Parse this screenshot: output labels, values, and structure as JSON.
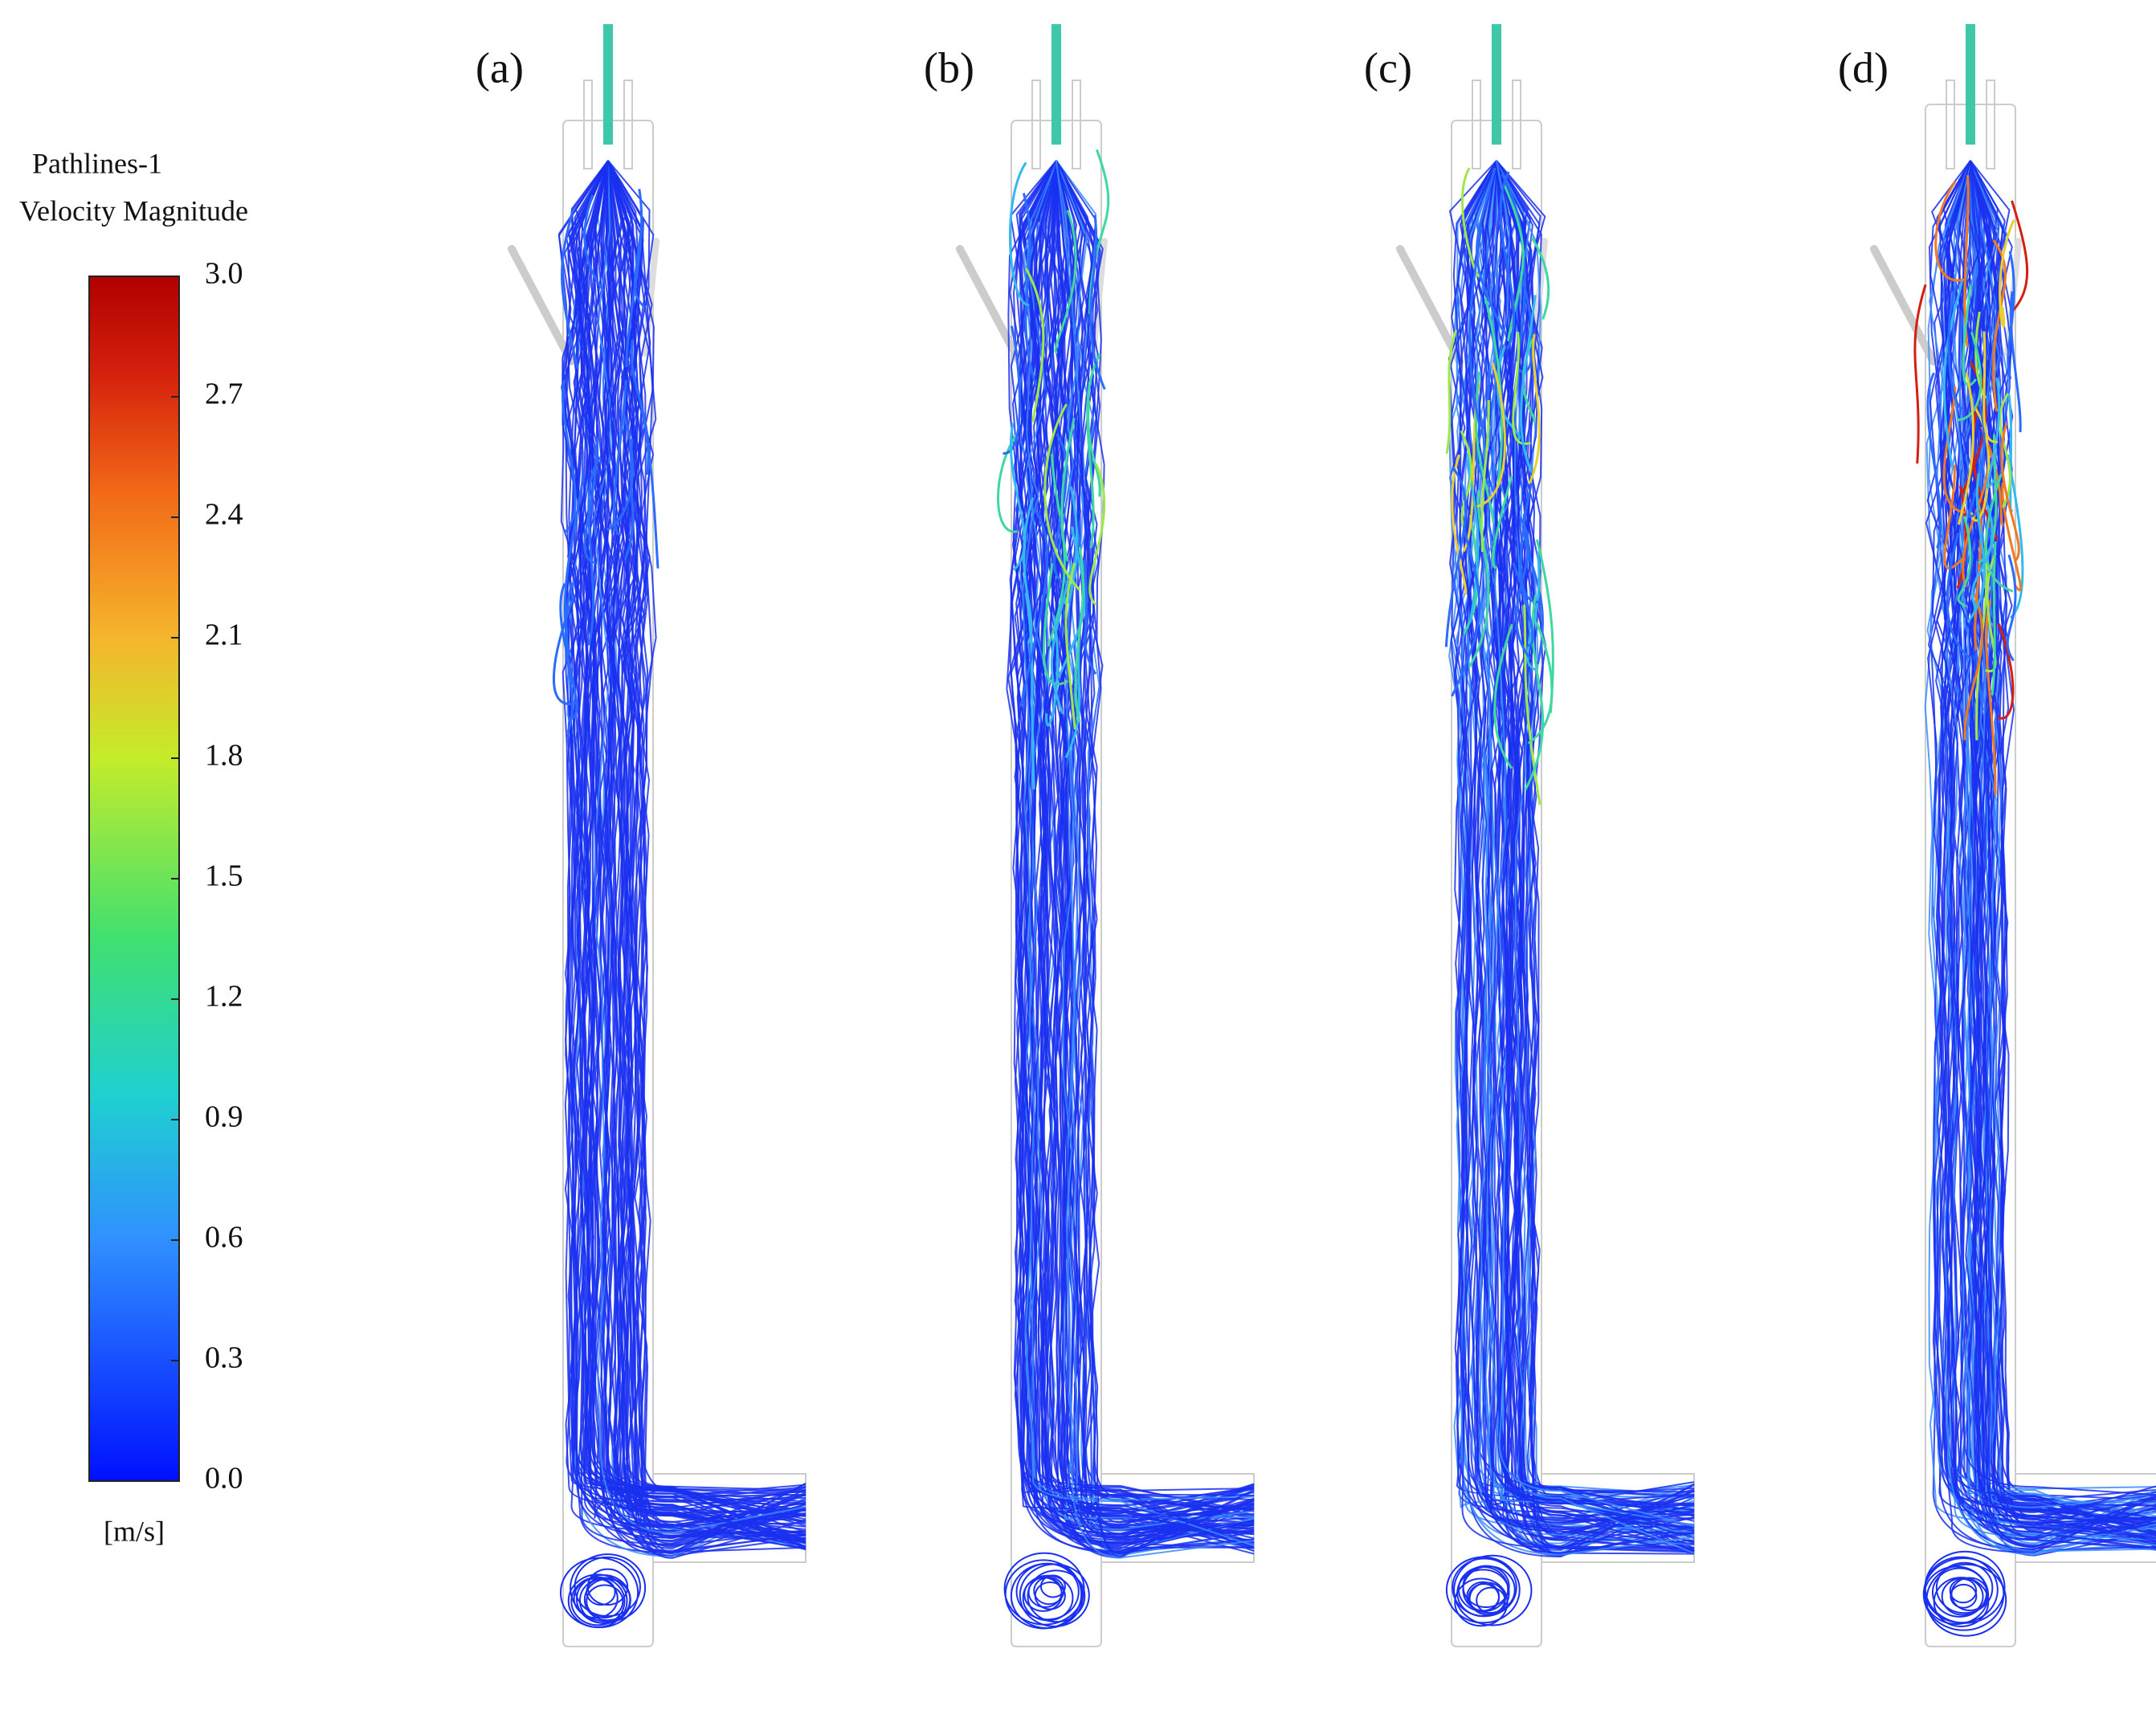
{
  "colorbar": {
    "title": "Pathlines-1",
    "subtitle": "Velocity Magnitude",
    "unit": "[m/s]",
    "ticks": [
      {
        "value": 3,
        "label": "3.0"
      },
      {
        "value": 2.7,
        "label": "2.7"
      },
      {
        "value": 2.4,
        "label": "2.4"
      },
      {
        "value": 2.1,
        "label": "2.1"
      },
      {
        "value": 1.8,
        "label": "1.8"
      },
      {
        "value": 1.5,
        "label": "1.5"
      },
      {
        "value": 1.2,
        "label": "1.2"
      },
      {
        "value": 0.9,
        "label": "0.9"
      },
      {
        "value": 0.6,
        "label": "0.6"
      },
      {
        "value": 0.3,
        "label": "0.3"
      },
      {
        "value": 0,
        "label": "0.0"
      }
    ]
  },
  "panels": [
    {
      "label": "(a)"
    },
    {
      "label": "(b)"
    },
    {
      "label": "(c)"
    },
    {
      "label": "(d)"
    }
  ]
}
